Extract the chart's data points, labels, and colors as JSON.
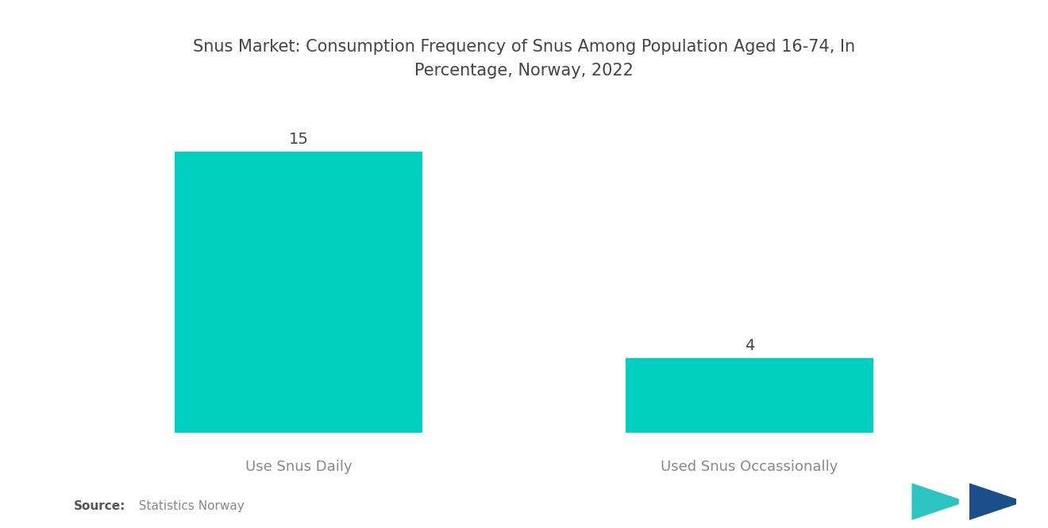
{
  "title": "Snus Market: Consumption Frequency of Snus Among Population Aged 16-74, In\nPercentage, Norway, 2022",
  "categories": [
    "Use Snus Daily",
    "Used Snus Occassionally"
  ],
  "values": [
    15,
    4
  ],
  "bar_color": "#00D0C0",
  "value_labels": [
    "15",
    "4"
  ],
  "source_bold": "Source:",
  "source_text": "  Statistics Norway",
  "background_color": "#ffffff",
  "title_color": "#444444",
  "label_color": "#888888",
  "value_color": "#444444",
  "ylim": [
    0,
    18
  ],
  "title_fontsize": 15,
  "label_fontsize": 13,
  "value_fontsize": 14,
  "source_fontsize": 11,
  "x_positions": [
    1,
    3
  ],
  "bar_width": 1.1,
  "xlim": [
    0,
    4
  ]
}
